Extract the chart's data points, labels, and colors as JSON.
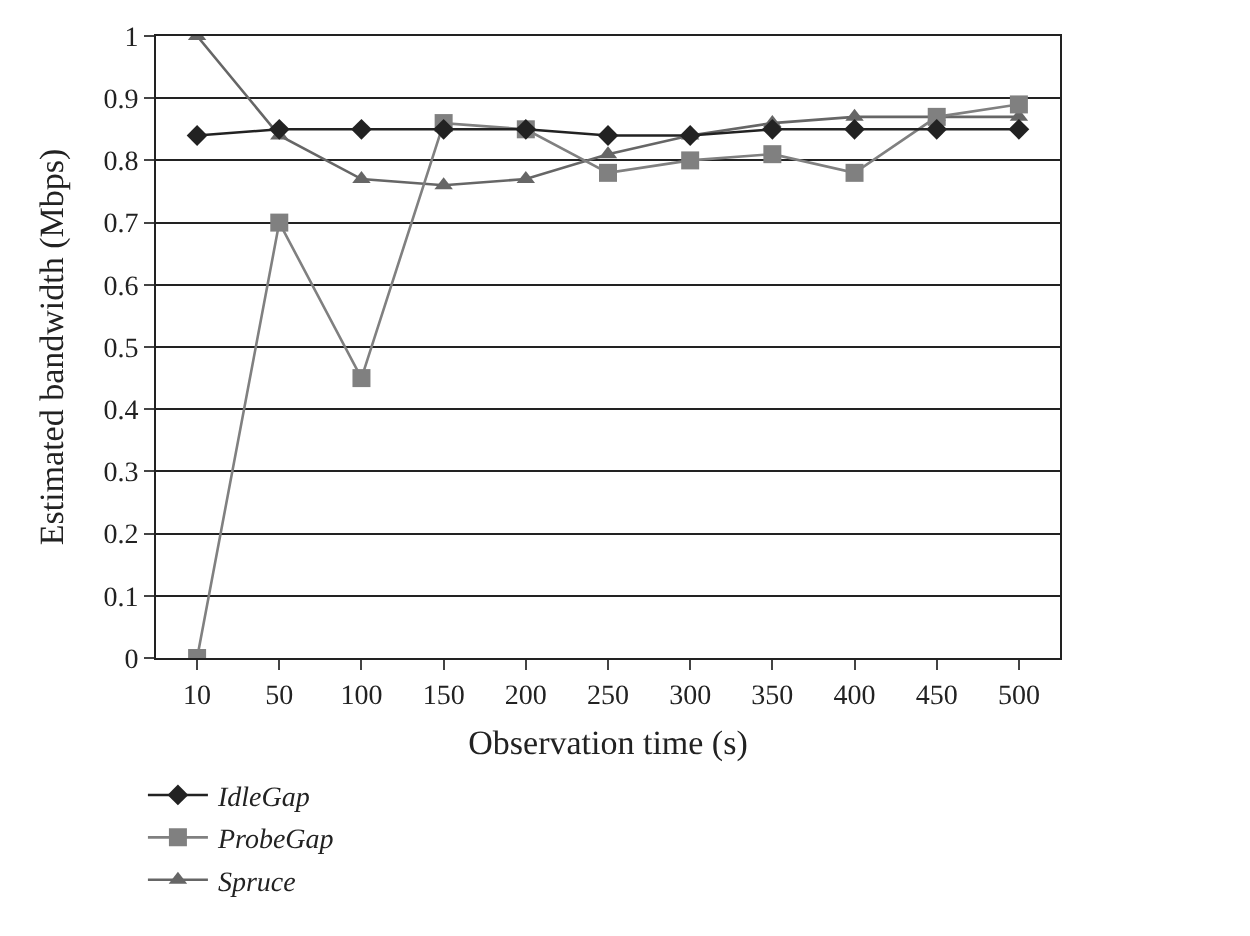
{
  "chart_data": {
    "type": "line",
    "xlabel": "Observation time (s)",
    "ylabel": "Estimated bandwidth (Mbps)",
    "categories": [
      "10",
      "50",
      "100",
      "150",
      "200",
      "250",
      "300",
      "350",
      "400",
      "450",
      "500"
    ],
    "series": [
      {
        "name": "IdleGap",
        "color": "#222222",
        "marker": "diamond",
        "values": [
          0.84,
          0.85,
          0.85,
          0.85,
          0.85,
          0.84,
          0.84,
          0.85,
          0.85,
          0.85,
          0.85
        ]
      },
      {
        "name": "ProbeGap",
        "color": "#808080",
        "marker": "square",
        "values": [
          0,
          0.7,
          0.45,
          0.86,
          0.85,
          0.78,
          0.8,
          0.81,
          0.78,
          0.87,
          0.89
        ]
      },
      {
        "name": "Spruce",
        "color": "#666666",
        "marker": "triangle",
        "values": [
          1.0,
          0.84,
          0.77,
          0.76,
          0.77,
          0.81,
          0.84,
          0.86,
          0.87,
          0.87,
          0.87
        ]
      }
    ],
    "ylim": [
      0,
      1
    ],
    "yticks": [
      0,
      0.1,
      0.2,
      0.3,
      0.4,
      0.5,
      0.6,
      0.7,
      0.8,
      0.9,
      1
    ],
    "grid": "y",
    "legend": "bottom left",
    "line_style": "solid"
  }
}
